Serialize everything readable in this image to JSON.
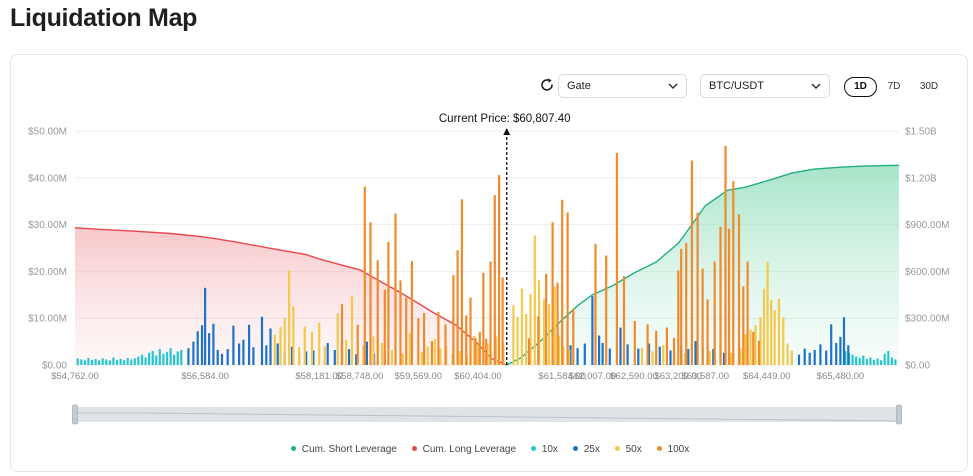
{
  "page": {
    "title": "Liquidation Map"
  },
  "controls": {
    "exchange": {
      "value": "Gate"
    },
    "pair": {
      "value": "BTC/USDT"
    },
    "ranges": [
      {
        "label": "1D",
        "active": true
      },
      {
        "label": "7D",
        "active": false
      },
      {
        "label": "30D",
        "active": false
      }
    ]
  },
  "colors": {
    "short": "#22b07d",
    "long": "#e8484d",
    "10x": "#26c6d0",
    "25x": "#1e73c8",
    "50x": "#f2c94c",
    "100x": "#f08a2c"
  },
  "chart_data": {
    "type": "bar",
    "annotation": "Current Price: $60,807.40",
    "current_price_x": 60807.4,
    "x_range": [
      54762.0,
      66300.0
    ],
    "y_left_range": [
      0,
      50
    ],
    "y_right_range": [
      0,
      1500
    ],
    "y_left_ticks": [
      "$0.00",
      "$10.00M",
      "$20.00M",
      "$30.00M",
      "$40.00M",
      "$50.00M"
    ],
    "y_right_ticks": [
      "$0.00",
      "$300.00M",
      "$600.00M",
      "$900.00M",
      "$1.20B",
      "$1.50B"
    ],
    "x_ticks": [
      {
        "value": 54762,
        "label": "$54,762.00"
      },
      {
        "value": 56584,
        "label": "$56,584.00"
      },
      {
        "value": 58181,
        "label": "$58,181.00"
      },
      {
        "value": 58748,
        "label": "$58,748.00"
      },
      {
        "value": 59569,
        "label": "$59,569.00"
      },
      {
        "value": 60404,
        "label": "$60,404.00"
      },
      {
        "value": 61584,
        "label": "$61,584.00"
      },
      {
        "value": 62007,
        "label": "$62,007.00"
      },
      {
        "value": 62590,
        "label": "$62,590.00"
      },
      {
        "value": 63209,
        "label": "$63,209.00"
      },
      {
        "value": 63587,
        "label": "$63,587.00"
      },
      {
        "value": 64449,
        "label": "$64,449.00"
      },
      {
        "value": 65480,
        "label": "$65,480.00"
      }
    ],
    "legend": [
      {
        "key": "short",
        "label": "Cum. Short Leverage"
      },
      {
        "key": "long",
        "label": "Cum. Long Leverage"
      },
      {
        "key": "10x",
        "label": "10x"
      },
      {
        "key": "25x",
        "label": "25x"
      },
      {
        "key": "50x",
        "label": "50x"
      },
      {
        "key": "100x",
        "label": "100x"
      }
    ],
    "cum_long": {
      "name": "Cum. Long Leverage",
      "points": [
        [
          54762,
          880
        ],
        [
          55100,
          870
        ],
        [
          55600,
          858
        ],
        [
          56100,
          843
        ],
        [
          56584,
          820
        ],
        [
          57000,
          790
        ],
        [
          57500,
          748
        ],
        [
          58000,
          708
        ],
        [
          58181,
          680
        ],
        [
          58500,
          640
        ],
        [
          58748,
          610
        ],
        [
          59000,
          545
        ],
        [
          59300,
          470
        ],
        [
          59569,
          395
        ],
        [
          59800,
          330
        ],
        [
          60100,
          255
        ],
        [
          60404,
          135
        ],
        [
          60600,
          40
        ],
        [
          60807,
          0
        ]
      ]
    },
    "cum_short": {
      "name": "Cum. Short Leverage",
      "points": [
        [
          60807,
          0
        ],
        [
          61000,
          45
        ],
        [
          61300,
          160
        ],
        [
          61584,
          290
        ],
        [
          61800,
          380
        ],
        [
          62007,
          450
        ],
        [
          62300,
          510
        ],
        [
          62590,
          590
        ],
        [
          62900,
          660
        ],
        [
          63209,
          780
        ],
        [
          63400,
          900
        ],
        [
          63587,
          1020
        ],
        [
          63900,
          1120
        ],
        [
          64150,
          1140
        ],
        [
          64449,
          1180
        ],
        [
          64800,
          1230
        ],
        [
          65100,
          1255
        ],
        [
          65480,
          1268
        ],
        [
          65800,
          1275
        ],
        [
          66100,
          1278
        ],
        [
          66300,
          1280
        ]
      ]
    },
    "series": [
      {
        "name": "10x",
        "points": [
          [
            54800,
            1.4
          ],
          [
            54850,
            1.2
          ],
          [
            54900,
            1.0
          ],
          [
            54950,
            1.5
          ],
          [
            55000,
            1.1
          ],
          [
            55050,
            1.3
          ],
          [
            55100,
            1.0
          ],
          [
            55150,
            1.4
          ],
          [
            55200,
            1.2
          ],
          [
            55250,
            1.0
          ],
          [
            55300,
            1.6
          ],
          [
            55350,
            1.1
          ],
          [
            55400,
            1.3
          ],
          [
            55450,
            1.0
          ],
          [
            55500,
            1.5
          ],
          [
            55550,
            1.2
          ],
          [
            55600,
            1.4
          ],
          [
            55650,
            1.8
          ],
          [
            55700,
            2.2
          ],
          [
            55750,
            1.6
          ],
          [
            55800,
            2.6
          ],
          [
            55850,
            3.0
          ],
          [
            55900,
            2.0
          ],
          [
            55950,
            3.4
          ],
          [
            56000,
            2.4
          ],
          [
            56050,
            2.8
          ],
          [
            56100,
            3.6
          ],
          [
            56150,
            2.2
          ],
          [
            56200,
            2.9
          ],
          [
            56250,
            3.2
          ],
          [
            65550,
            3.0
          ],
          [
            65600,
            2.6
          ],
          [
            65650,
            2.2
          ],
          [
            65700,
            1.8
          ],
          [
            65750,
            1.5
          ],
          [
            65800,
            2.0
          ],
          [
            65850,
            1.3
          ],
          [
            65900,
            1.6
          ],
          [
            65950,
            1.1
          ],
          [
            66000,
            1.4
          ],
          [
            66050,
            1.0
          ],
          [
            66100,
            2.4
          ],
          [
            66150,
            3.0
          ],
          [
            66200,
            1.6
          ],
          [
            66250,
            1.2
          ]
        ]
      },
      {
        "name": "25x",
        "points": [
          [
            56350,
            3.6
          ],
          [
            56420,
            5.0
          ],
          [
            56480,
            7.2
          ],
          [
            56540,
            8.5
          ],
          [
            56584,
            16.5
          ],
          [
            56640,
            6.8
          ],
          [
            56700,
            8.8
          ],
          [
            56760,
            3.2
          ],
          [
            56820,
            2.4
          ],
          [
            56900,
            3.4
          ],
          [
            56980,
            8.4
          ],
          [
            57060,
            4.6
          ],
          [
            57120,
            5.4
          ],
          [
            57200,
            8.6
          ],
          [
            57260,
            3.8
          ],
          [
            57380,
            10.3
          ],
          [
            57440,
            4.2
          ],
          [
            57500,
            7.8
          ],
          [
            57600,
            4.6
          ],
          [
            57700,
            2.6
          ],
          [
            57800,
            3.9
          ],
          [
            57900,
            2.5
          ],
          [
            58000,
            2.9
          ],
          [
            58100,
            3.1
          ],
          [
            58300,
            4.7
          ],
          [
            58400,
            3.2
          ],
          [
            58500,
            5.0
          ],
          [
            58600,
            3.4
          ],
          [
            58700,
            2.3
          ],
          [
            58850,
            5.0
          ],
          [
            58950,
            2.4
          ],
          [
            59100,
            3.0
          ],
          [
            61700,
            4.2
          ],
          [
            61800,
            3.6
          ],
          [
            61900,
            4.6
          ],
          [
            62007,
            14.7
          ],
          [
            62100,
            6.3
          ],
          [
            62150,
            4.7
          ],
          [
            62250,
            3.5
          ],
          [
            62400,
            8.0
          ],
          [
            62500,
            4.4
          ],
          [
            62650,
            3.5
          ],
          [
            62800,
            4.6
          ],
          [
            62950,
            3.9
          ],
          [
            63100,
            3.1
          ],
          [
            63250,
            4.1
          ],
          [
            63350,
            3.4
          ],
          [
            63450,
            5.1
          ],
          [
            63550,
            4.0
          ],
          [
            63700,
            3.4
          ],
          [
            63850,
            2.6
          ],
          [
            63950,
            1.9
          ],
          [
            64800,
            2.8
          ],
          [
            64900,
            2.2
          ],
          [
            64980,
            3.5
          ],
          [
            65050,
            2.6
          ],
          [
            65120,
            3.2
          ],
          [
            65200,
            4.4
          ],
          [
            65280,
            3.1
          ],
          [
            65350,
            8.7
          ],
          [
            65420,
            4.7
          ],
          [
            65480,
            6.0
          ],
          [
            65530,
            10.2
          ],
          [
            65590,
            4.2
          ]
        ]
      },
      {
        "name": "50x",
        "points": [
          [
            57560,
            6.4
          ],
          [
            57640,
            8.1
          ],
          [
            57700,
            10.1
          ],
          [
            57760,
            20.2
          ],
          [
            57820,
            12.5
          ],
          [
            57900,
            3.8
          ],
          [
            57980,
            8.2
          ],
          [
            58080,
            7.1
          ],
          [
            58181,
            9.0
          ],
          [
            58260,
            4.0
          ],
          [
            58440,
            11.0
          ],
          [
            58560,
            5.4
          ],
          [
            58640,
            14.7
          ],
          [
            58800,
            4.2
          ],
          [
            58940,
            6.1
          ],
          [
            59060,
            4.7
          ],
          [
            59200,
            3.2
          ],
          [
            59350,
            2.5
          ],
          [
            59450,
            6.8
          ],
          [
            59620,
            2.8
          ],
          [
            59700,
            4.0
          ],
          [
            59800,
            5.6
          ],
          [
            59880,
            3.6
          ],
          [
            59960,
            4.1
          ],
          [
            60050,
            2.5
          ],
          [
            60150,
            3.0
          ],
          [
            60250,
            2.2
          ],
          [
            60350,
            6.2
          ],
          [
            60404,
            4.3
          ],
          [
            60540,
            4.5
          ],
          [
            60660,
            6.1
          ],
          [
            60760,
            4.6
          ],
          [
            60900,
            12.8
          ],
          [
            60960,
            10.3
          ],
          [
            61020,
            16.3
          ],
          [
            61080,
            10.9
          ],
          [
            61140,
            15.2
          ],
          [
            61200,
            27.7
          ],
          [
            61260,
            18.1
          ],
          [
            61330,
            14.1
          ],
          [
            61400,
            13.0
          ],
          [
            61480,
            16.8
          ],
          [
            61540,
            6.3
          ],
          [
            61600,
            4.0
          ],
          [
            61680,
            3.2
          ],
          [
            62700,
            3.7
          ],
          [
            62850,
            2.9
          ],
          [
            63000,
            4.3
          ],
          [
            63150,
            3.2
          ],
          [
            63300,
            2.5
          ],
          [
            63650,
            3.0
          ],
          [
            63800,
            4.8
          ],
          [
            63950,
            2.6
          ],
          [
            64080,
            3.6
          ],
          [
            64150,
            6.6
          ],
          [
            64220,
            7.6
          ],
          [
            64290,
            8.5
          ],
          [
            64360,
            10.2
          ],
          [
            64410,
            16.3
          ],
          [
            64460,
            22.0
          ],
          [
            64510,
            13.9
          ],
          [
            64560,
            11.7
          ],
          [
            64620,
            14.1
          ],
          [
            64680,
            10.2
          ],
          [
            64740,
            4.6
          ],
          [
            64800,
            3.1
          ]
        ]
      },
      {
        "name": "100x",
        "points": [
          [
            58500,
            13.0
          ],
          [
            58720,
            8.6
          ],
          [
            58820,
            38.1
          ],
          [
            58900,
            30.5
          ],
          [
            59000,
            22.4
          ],
          [
            59100,
            16.1
          ],
          [
            59150,
            26.3
          ],
          [
            59250,
            32.4
          ],
          [
            59320,
            18.1
          ],
          [
            59400,
            14.4
          ],
          [
            59480,
            22.2
          ],
          [
            59569,
            10.0
          ],
          [
            59650,
            11.1
          ],
          [
            59760,
            5.1
          ],
          [
            59850,
            11.3
          ],
          [
            59950,
            8.7
          ],
          [
            60060,
            19.2
          ],
          [
            60120,
            24.5
          ],
          [
            60180,
            35.4
          ],
          [
            60240,
            10.6
          ],
          [
            60300,
            14.4
          ],
          [
            60370,
            5.8
          ],
          [
            60430,
            7.1
          ],
          [
            60480,
            19.7
          ],
          [
            60520,
            5.6
          ],
          [
            60580,
            22.1
          ],
          [
            60640,
            36.3
          ],
          [
            60700,
            40.6
          ],
          [
            60750,
            18.7
          ],
          [
            61120,
            5.7
          ],
          [
            61250,
            10.4
          ],
          [
            61360,
            19.5
          ],
          [
            61450,
            30.5
          ],
          [
            61520,
            17.6
          ],
          [
            61584,
            35.3
          ],
          [
            61660,
            32.6
          ],
          [
            61740,
            12.0
          ],
          [
            62050,
            25.9
          ],
          [
            62200,
            23.4
          ],
          [
            62350,
            45.3
          ],
          [
            62450,
            19.0
          ],
          [
            62600,
            9.4
          ],
          [
            62780,
            8.7
          ],
          [
            62900,
            7.3
          ],
          [
            63050,
            8.0
          ],
          [
            63150,
            5.8
          ],
          [
            63209,
            20.2
          ],
          [
            63250,
            24.8
          ],
          [
            63320,
            26.1
          ],
          [
            63400,
            43.7
          ],
          [
            63480,
            32.6
          ],
          [
            63550,
            20.6
          ],
          [
            63620,
            14.0
          ],
          [
            63720,
            22.1
          ],
          [
            63800,
            29.5
          ],
          [
            63870,
            46.8
          ],
          [
            63920,
            29.1
          ],
          [
            63980,
            39.3
          ],
          [
            64060,
            32.2
          ],
          [
            64120,
            16.8
          ],
          [
            64180,
            22.1
          ],
          [
            64260,
            7.1
          ],
          [
            64340,
            5.2
          ]
        ]
      }
    ]
  }
}
